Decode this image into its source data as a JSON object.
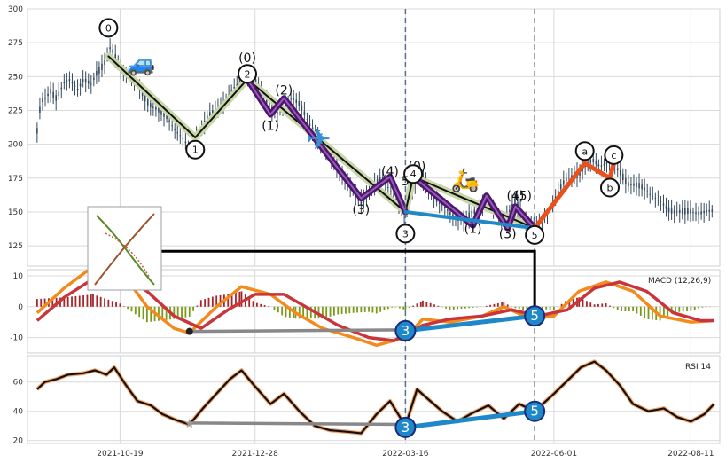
{
  "chart_data": [
    {
      "type": "candlestick",
      "panel": "price",
      "ylim": [
        110,
        300
      ],
      "yticks": [
        125,
        150,
        175,
        200,
        225,
        250,
        275,
        300
      ],
      "x_dates": [
        "2021-10-19",
        "2021-12-28",
        "2022-03-16",
        "2022-06-01",
        "2022-08-11"
      ],
      "x_date_range": [
        "2021-09-01",
        "2022-08-26"
      ],
      "grid": true,
      "close_series": [
        [
          "2021-09-06",
          208
        ],
        [
          "2021-09-08",
          230
        ],
        [
          "2021-09-10",
          233
        ],
        [
          "2021-09-13",
          241
        ],
        [
          "2021-09-16",
          236
        ],
        [
          "2021-09-20",
          245
        ],
        [
          "2021-09-23",
          247
        ],
        [
          "2021-09-27",
          240
        ],
        [
          "2021-09-30",
          246
        ],
        [
          "2021-10-04",
          244
        ],
        [
          "2021-10-07",
          255
        ],
        [
          "2021-10-11",
          262
        ],
        [
          "2021-10-14",
          271
        ],
        [
          "2021-10-17",
          262
        ],
        [
          "2021-10-20",
          253
        ],
        [
          "2021-10-24",
          249
        ],
        [
          "2021-10-28",
          244
        ],
        [
          "2021-11-01",
          236
        ],
        [
          "2021-11-05",
          228
        ],
        [
          "2021-11-09",
          222
        ],
        [
          "2021-11-13",
          218
        ],
        [
          "2021-11-17",
          210
        ],
        [
          "2021-11-21",
          204
        ],
        [
          "2021-11-24",
          198
        ],
        [
          "2021-11-27",
          206
        ],
        [
          "2021-12-01",
          212
        ],
        [
          "2021-12-05",
          220
        ],
        [
          "2021-12-09",
          228
        ],
        [
          "2021-12-13",
          234
        ],
        [
          "2021-12-17",
          242
        ],
        [
          "2021-12-21",
          248
        ],
        [
          "2021-12-24",
          250
        ],
        [
          "2021-12-28",
          244
        ],
        [
          "2022-01-01",
          238
        ],
        [
          "2022-01-05",
          229
        ],
        [
          "2022-01-08",
          223
        ],
        [
          "2022-01-12",
          228
        ],
        [
          "2022-01-16",
          234
        ],
        [
          "2022-01-20",
          228
        ],
        [
          "2022-01-24",
          218
        ],
        [
          "2022-01-28",
          210
        ],
        [
          "2022-02-01",
          200
        ],
        [
          "2022-02-05",
          190
        ],
        [
          "2022-02-09",
          180
        ],
        [
          "2022-02-13",
          172
        ],
        [
          "2022-02-17",
          165
        ],
        [
          "2022-02-21",
          160
        ],
        [
          "2022-02-25",
          165
        ],
        [
          "2022-03-01",
          170
        ],
        [
          "2022-03-04",
          174
        ],
        [
          "2022-03-08",
          166
        ],
        [
          "2022-03-12",
          156
        ],
        [
          "2022-03-16",
          150
        ],
        [
          "2022-03-20",
          168
        ],
        [
          "2022-03-23",
          176
        ],
        [
          "2022-03-27",
          168
        ],
        [
          "2022-03-31",
          160
        ],
        [
          "2022-04-04",
          156
        ],
        [
          "2022-04-08",
          150
        ],
        [
          "2022-04-12",
          146
        ],
        [
          "2022-04-16",
          142
        ],
        [
          "2022-04-20",
          147
        ],
        [
          "2022-04-24",
          155
        ],
        [
          "2022-04-27",
          159
        ],
        [
          "2022-05-01",
          152
        ],
        [
          "2022-05-05",
          144
        ],
        [
          "2022-05-09",
          150
        ],
        [
          "2022-05-12",
          156
        ],
        [
          "2022-05-16",
          145
        ],
        [
          "2022-05-20",
          140
        ],
        [
          "2022-05-24",
          142
        ],
        [
          "2022-05-28",
          146
        ],
        [
          "2022-06-01",
          158
        ],
        [
          "2022-06-05",
          168
        ],
        [
          "2022-06-09",
          176
        ],
        [
          "2022-06-13",
          180
        ],
        [
          "2022-06-17",
          184
        ],
        [
          "2022-06-21",
          187
        ],
        [
          "2022-06-25",
          183
        ],
        [
          "2022-06-29",
          186
        ],
        [
          "2022-07-02",
          185
        ],
        [
          "2022-07-06",
          180
        ],
        [
          "2022-07-10",
          171
        ],
        [
          "2022-07-14",
          168
        ],
        [
          "2022-07-18",
          166
        ],
        [
          "2022-07-22",
          162
        ],
        [
          "2022-07-26",
          158
        ],
        [
          "2022-07-30",
          154
        ],
        [
          "2022-08-03",
          151
        ],
        [
          "2022-08-07",
          148
        ],
        [
          "2022-08-11",
          149
        ],
        [
          "2022-08-15",
          150
        ],
        [
          "2022-08-19",
          151
        ],
        [
          "2022-08-23",
          152
        ]
      ],
      "wave_labels": [
        {
          "label": "0",
          "date": "2021-10-13",
          "price": 286,
          "circled": true
        },
        {
          "label": "1",
          "date": "2021-11-27",
          "price": 196,
          "circled": true
        },
        {
          "label": "(0)",
          "date": "2021-12-24",
          "price": 264,
          "circled": false
        },
        {
          "label": "2",
          "date": "2021-12-24",
          "price": 252,
          "circled": true
        },
        {
          "label": "(2)",
          "date": "2022-01-12",
          "price": 240,
          "circled": false
        },
        {
          "label": "(1)",
          "date": "2022-01-05",
          "price": 214,
          "circled": false
        },
        {
          "label": "(3)",
          "date": "2022-02-21",
          "price": 152,
          "circled": false
        },
        {
          "label": "(4)",
          "date": "2022-03-08",
          "price": 180,
          "circled": false
        },
        {
          "label": "(0)",
          "date": "2022-03-22",
          "price": 184,
          "circled": false
        },
        {
          "label": "4",
          "date": "2022-03-20",
          "price": 178,
          "circled": true
        },
        {
          "label": "5",
          "date": "2022-03-16",
          "price": 173,
          "circled": false
        },
        {
          "label": "3",
          "date": "2022-03-16",
          "price": 134,
          "circled": true
        },
        {
          "label": "(1)",
          "date": "2022-04-20",
          "price": 138,
          "circled": false
        },
        {
          "label": "(4)",
          "date": "2022-05-12",
          "price": 162,
          "circled": false
        },
        {
          "label": "(5)",
          "date": "2022-05-16",
          "price": 162,
          "circled": false
        },
        {
          "label": "(3)",
          "date": "2022-05-08",
          "price": 134,
          "circled": false
        },
        {
          "label": "5",
          "date": "2022-05-22",
          "price": 133,
          "circled": true
        },
        {
          "label": "a",
          "date": "2022-06-17",
          "price": 195,
          "circled": true
        },
        {
          "label": "b",
          "date": "2022-06-30",
          "price": 168,
          "circled": true
        },
        {
          "label": "c",
          "date": "2022-07-02",
          "price": 192,
          "circled": true
        }
      ]
    },
    {
      "type": "bar+line",
      "panel": "macd",
      "label": "MACD (12,26,9)",
      "ylim": [
        -15,
        12
      ],
      "yticks": [
        -10,
        0,
        10
      ],
      "grid": true,
      "macd_line": [
        [
          "2021-09-06",
          -2
        ],
        [
          "2021-09-20",
          6
        ],
        [
          "2021-10-05",
          13
        ],
        [
          "2021-10-19",
          12
        ],
        [
          "2021-11-02",
          0
        ],
        [
          "2021-11-16",
          -7
        ],
        [
          "2021-11-24",
          -8.5
        ],
        [
          "2021-12-08",
          0
        ],
        [
          "2021-12-21",
          6.5
        ],
        [
          "2022-01-05",
          4
        ],
        [
          "2022-01-18",
          -2
        ],
        [
          "2022-02-01",
          -7
        ],
        [
          "2022-02-17",
          -10
        ],
        [
          "2022-03-01",
          -12.5
        ],
        [
          "2022-03-16",
          -10
        ],
        [
          "2022-03-25",
          -4
        ],
        [
          "2022-04-08",
          -5
        ],
        [
          "2022-04-25",
          -3
        ],
        [
          "2022-05-06",
          0
        ],
        [
          "2022-05-20",
          -4
        ],
        [
          "2022-06-01",
          -3
        ],
        [
          "2022-06-14",
          5
        ],
        [
          "2022-06-28",
          8
        ],
        [
          "2022-07-12",
          5
        ],
        [
          "2022-07-26",
          -3
        ],
        [
          "2022-08-11",
          -5
        ],
        [
          "2022-08-23",
          -4.5
        ]
      ],
      "signal_line": [
        [
          "2021-09-06",
          -4.5
        ],
        [
          "2021-09-20",
          3
        ],
        [
          "2021-10-05",
          9
        ],
        [
          "2021-10-19",
          11
        ],
        [
          "2021-11-02",
          5
        ],
        [
          "2021-11-16",
          -3
        ],
        [
          "2021-11-30",
          -7
        ],
        [
          "2021-12-14",
          -1
        ],
        [
          "2021-12-28",
          4
        ],
        [
          "2022-01-12",
          4
        ],
        [
          "2022-01-26",
          -1
        ],
        [
          "2022-02-09",
          -6
        ],
        [
          "2022-02-25",
          -10
        ],
        [
          "2022-03-10",
          -11
        ],
        [
          "2022-03-25",
          -6
        ],
        [
          "2022-04-08",
          -4
        ],
        [
          "2022-04-25",
          -3
        ],
        [
          "2022-05-10",
          -1
        ],
        [
          "2022-05-24",
          -3
        ],
        [
          "2022-06-08",
          -1
        ],
        [
          "2022-06-22",
          6
        ],
        [
          "2022-07-05",
          8
        ],
        [
          "2022-07-19",
          5
        ],
        [
          "2022-08-02",
          -2
        ],
        [
          "2022-08-16",
          -4.5
        ],
        [
          "2022-08-23",
          -4.5
        ]
      ],
      "divergence_marks": [
        {
          "label": "3",
          "date": "2022-03-16",
          "value": -7.8
        },
        {
          "label": "5",
          "date": "2022-05-22",
          "value": -3
        }
      ]
    },
    {
      "type": "line",
      "panel": "rsi",
      "label": "RSI 14",
      "ylim": [
        18,
        78
      ],
      "yticks": [
        20,
        40,
        60
      ],
      "grid": true,
      "rsi_line": [
        [
          "2021-09-06",
          55
        ],
        [
          "2021-09-10",
          60
        ],
        [
          "2021-09-16",
          62
        ],
        [
          "2021-09-22",
          65
        ],
        [
          "2021-09-30",
          66
        ],
        [
          "2021-10-06",
          68
        ],
        [
          "2021-10-12",
          65
        ],
        [
          "2021-10-16",
          70
        ],
        [
          "2021-10-22",
          58
        ],
        [
          "2021-10-28",
          47
        ],
        [
          "2021-11-04",
          44
        ],
        [
          "2021-11-10",
          38
        ],
        [
          "2021-11-17",
          34
        ],
        [
          "2021-11-24",
          31
        ],
        [
          "2021-12-01",
          42
        ],
        [
          "2021-12-08",
          52
        ],
        [
          "2021-12-15",
          62
        ],
        [
          "2021-12-21",
          68
        ],
        [
          "2021-12-28",
          57
        ],
        [
          "2022-01-05",
          45
        ],
        [
          "2022-01-12",
          52
        ],
        [
          "2022-01-20",
          40
        ],
        [
          "2022-01-28",
          30
        ],
        [
          "2022-02-05",
          27
        ],
        [
          "2022-02-14",
          26
        ],
        [
          "2022-02-21",
          25
        ],
        [
          "2022-03-01",
          38
        ],
        [
          "2022-03-08",
          47
        ],
        [
          "2022-03-16",
          30
        ],
        [
          "2022-03-22",
          55
        ],
        [
          "2022-03-28",
          48
        ],
        [
          "2022-04-04",
          40
        ],
        [
          "2022-04-12",
          33
        ],
        [
          "2022-04-20",
          39
        ],
        [
          "2022-04-28",
          44
        ],
        [
          "2022-05-06",
          35
        ],
        [
          "2022-05-14",
          45
        ],
        [
          "2022-05-22",
          40
        ],
        [
          "2022-06-01",
          52
        ],
        [
          "2022-06-08",
          61
        ],
        [
          "2022-06-15",
          70
        ],
        [
          "2022-06-22",
          74
        ],
        [
          "2022-06-28",
          68
        ],
        [
          "2022-07-05",
          58
        ],
        [
          "2022-07-12",
          45
        ],
        [
          "2022-07-20",
          40
        ],
        [
          "2022-07-28",
          42
        ],
        [
          "2022-08-04",
          36
        ],
        [
          "2022-08-11",
          33
        ],
        [
          "2022-08-18",
          38
        ],
        [
          "2022-08-23",
          45
        ]
      ],
      "divergence_marks": [
        {
          "label": "3",
          "date": "2022-03-16",
          "value": 29
        },
        {
          "label": "5",
          "date": "2022-05-22",
          "value": 40
        }
      ]
    }
  ]
}
